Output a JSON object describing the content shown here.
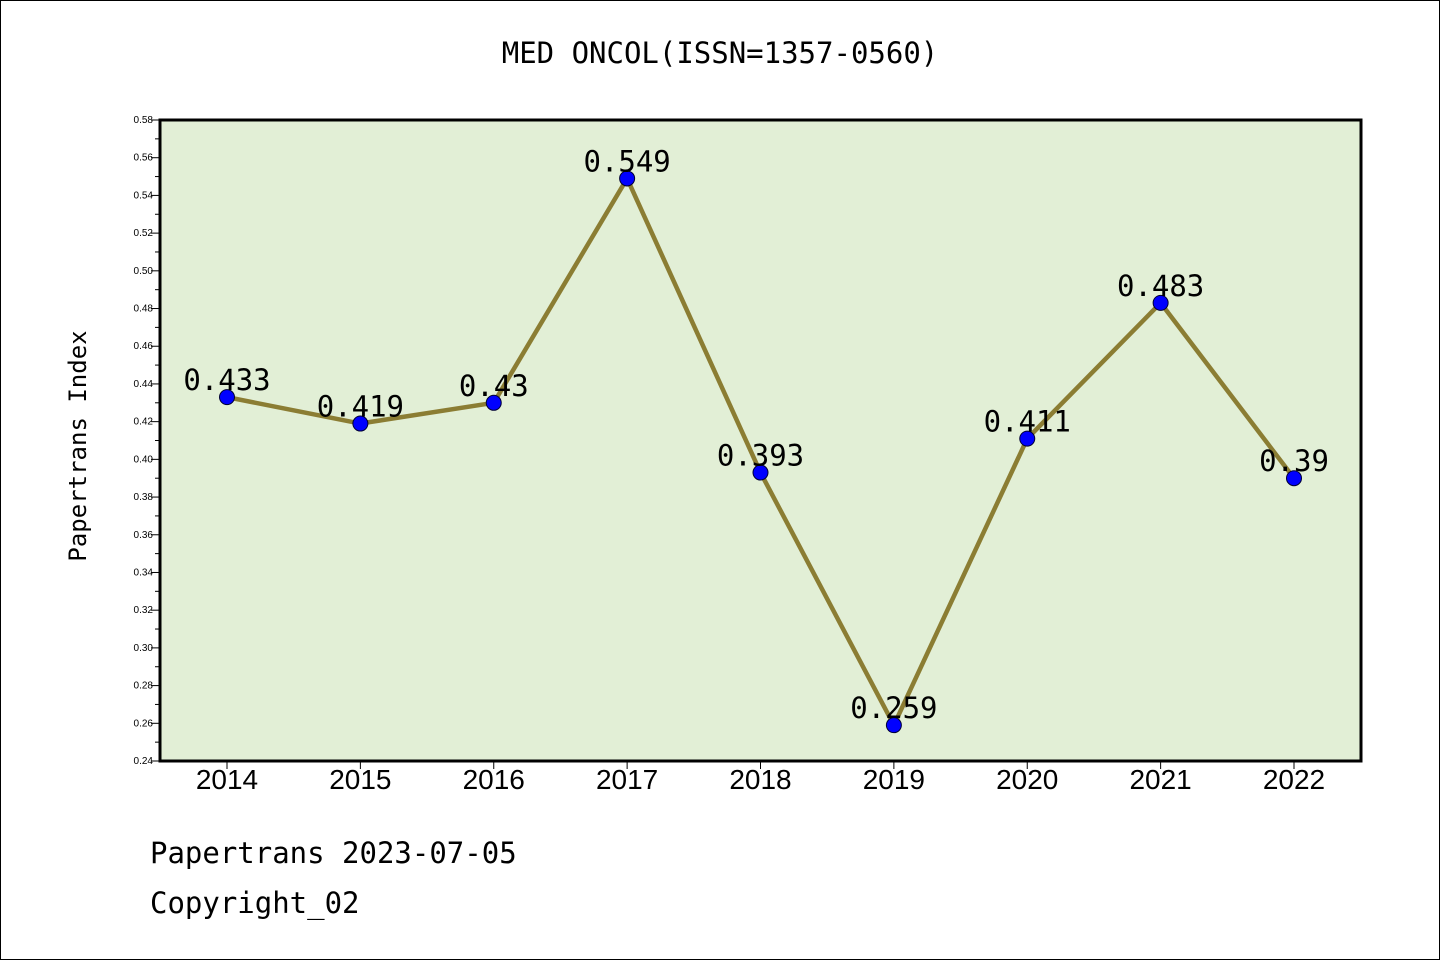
{
  "title": "MED ONCOL(ISSN=1357-0560)",
  "footer": {
    "line1": "Papertrans 2023-07-05",
    "line2": "Copyright_02"
  },
  "chart_data": {
    "type": "line",
    "title": "MED ONCOL(ISSN=1357-0560)",
    "xlabel": "",
    "ylabel": "Papertrans Index",
    "categories": [
      "2014",
      "2015",
      "2016",
      "2017",
      "2018",
      "2019",
      "2020",
      "2021",
      "2022"
    ],
    "values": [
      0.433,
      0.419,
      0.43,
      0.549,
      0.393,
      0.259,
      0.411,
      0.483,
      0.39
    ],
    "data_labels": [
      "0.433",
      "0.419",
      "0.43",
      "0.549",
      "0.393",
      "0.259",
      "0.411",
      "0.483",
      "0.39"
    ],
    "ylim": [
      0.24,
      0.58
    ],
    "yticks": [
      "0.24",
      "0.26",
      "0.28",
      "0.30",
      "0.32",
      "0.34",
      "0.36",
      "0.38",
      "0.40",
      "0.42",
      "0.44",
      "0.46",
      "0.48",
      "0.50",
      "0.52",
      "0.54",
      "0.56",
      "0.58"
    ],
    "grid": false,
    "legend": "none",
    "colors": {
      "plot_background": "#e2efd6",
      "line": "#8b7d33",
      "marker": "#0000ff"
    }
  }
}
